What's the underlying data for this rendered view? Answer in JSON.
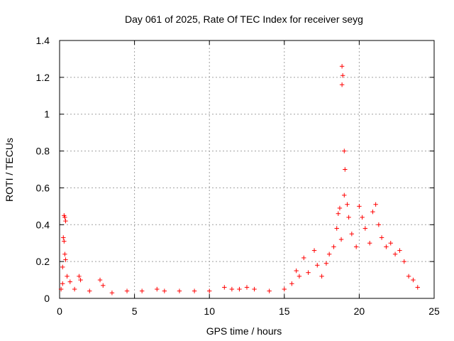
{
  "chart_data": {
    "type": "scatter",
    "title": "Day 061 of 2025, Rate Of TEC Index for receiver seyg",
    "xlabel": "GPS time / hours",
    "ylabel": "ROTI / TECUs",
    "xlim": [
      0,
      25
    ],
    "ylim": [
      0,
      1.4
    ],
    "x_ticks": [
      0,
      5,
      10,
      15,
      20,
      25
    ],
    "y_ticks": [
      0,
      0.2,
      0.4,
      0.6,
      0.8,
      1,
      1.2,
      1.4
    ],
    "x_tick_labels": [
      "0",
      "5",
      "10",
      "15",
      "20",
      "25"
    ],
    "y_tick_labels": [
      "0",
      "0.2",
      "0.4",
      "0.6",
      "0.8",
      "1",
      "1.2",
      "1.4"
    ],
    "grid": true,
    "series": [
      {
        "name": "ROTI",
        "color": "#ff0000",
        "marker": "plus",
        "points": [
          {
            "x": 0.1,
            "y": 0.05
          },
          {
            "x": 0.2,
            "y": 0.08
          },
          {
            "x": 0.3,
            "y": 0.45
          },
          {
            "x": 0.35,
            "y": 0.44
          },
          {
            "x": 0.4,
            "y": 0.42
          },
          {
            "x": 0.25,
            "y": 0.33
          },
          {
            "x": 0.3,
            "y": 0.31
          },
          {
            "x": 0.35,
            "y": 0.24
          },
          {
            "x": 0.4,
            "y": 0.21
          },
          {
            "x": 0.2,
            "y": 0.17
          },
          {
            "x": 0.5,
            "y": 0.12
          },
          {
            "x": 0.7,
            "y": 0.09
          },
          {
            "x": 1.0,
            "y": 0.05
          },
          {
            "x": 1.3,
            "y": 0.12
          },
          {
            "x": 1.4,
            "y": 0.1
          },
          {
            "x": 2.0,
            "y": 0.04
          },
          {
            "x": 2.7,
            "y": 0.1
          },
          {
            "x": 2.9,
            "y": 0.07
          },
          {
            "x": 3.5,
            "y": 0.03
          },
          {
            "x": 4.5,
            "y": 0.04
          },
          {
            "x": 5.5,
            "y": 0.04
          },
          {
            "x": 6.5,
            "y": 0.05
          },
          {
            "x": 7.0,
            "y": 0.04
          },
          {
            "x": 8.0,
            "y": 0.04
          },
          {
            "x": 9.0,
            "y": 0.04
          },
          {
            "x": 10.0,
            "y": 0.04
          },
          {
            "x": 11.0,
            "y": 0.06
          },
          {
            "x": 11.5,
            "y": 0.05
          },
          {
            "x": 12.0,
            "y": 0.05
          },
          {
            "x": 12.5,
            "y": 0.06
          },
          {
            "x": 13.0,
            "y": 0.05
          },
          {
            "x": 14.0,
            "y": 0.04
          },
          {
            "x": 15.0,
            "y": 0.05
          },
          {
            "x": 15.5,
            "y": 0.08
          },
          {
            "x": 15.8,
            "y": 0.15
          },
          {
            "x": 16.0,
            "y": 0.12
          },
          {
            "x": 16.3,
            "y": 0.22
          },
          {
            "x": 16.6,
            "y": 0.14
          },
          {
            "x": 17.0,
            "y": 0.26
          },
          {
            "x": 17.2,
            "y": 0.18
          },
          {
            "x": 17.5,
            "y": 0.12
          },
          {
            "x": 17.8,
            "y": 0.19
          },
          {
            "x": 18.0,
            "y": 0.24
          },
          {
            "x": 18.3,
            "y": 0.28
          },
          {
            "x": 18.5,
            "y": 0.38
          },
          {
            "x": 18.6,
            "y": 0.46
          },
          {
            "x": 18.7,
            "y": 0.49
          },
          {
            "x": 18.8,
            "y": 0.32
          },
          {
            "x": 18.85,
            "y": 1.26
          },
          {
            "x": 18.9,
            "y": 1.21
          },
          {
            "x": 18.85,
            "y": 1.16
          },
          {
            "x": 19.0,
            "y": 0.8
          },
          {
            "x": 19.05,
            "y": 0.7
          },
          {
            "x": 19.0,
            "y": 0.56
          },
          {
            "x": 19.2,
            "y": 0.51
          },
          {
            "x": 19.3,
            "y": 0.44
          },
          {
            "x": 19.5,
            "y": 0.35
          },
          {
            "x": 19.8,
            "y": 0.28
          },
          {
            "x": 20.0,
            "y": 0.5
          },
          {
            "x": 20.2,
            "y": 0.44
          },
          {
            "x": 20.4,
            "y": 0.38
          },
          {
            "x": 20.7,
            "y": 0.3
          },
          {
            "x": 20.9,
            "y": 0.47
          },
          {
            "x": 21.1,
            "y": 0.51
          },
          {
            "x": 21.3,
            "y": 0.4
          },
          {
            "x": 21.5,
            "y": 0.33
          },
          {
            "x": 21.8,
            "y": 0.28
          },
          {
            "x": 22.1,
            "y": 0.3
          },
          {
            "x": 22.4,
            "y": 0.24
          },
          {
            "x": 22.7,
            "y": 0.26
          },
          {
            "x": 23.0,
            "y": 0.2
          },
          {
            "x": 23.3,
            "y": 0.12
          },
          {
            "x": 23.6,
            "y": 0.1
          },
          {
            "x": 23.9,
            "y": 0.06
          }
        ]
      }
    ]
  }
}
